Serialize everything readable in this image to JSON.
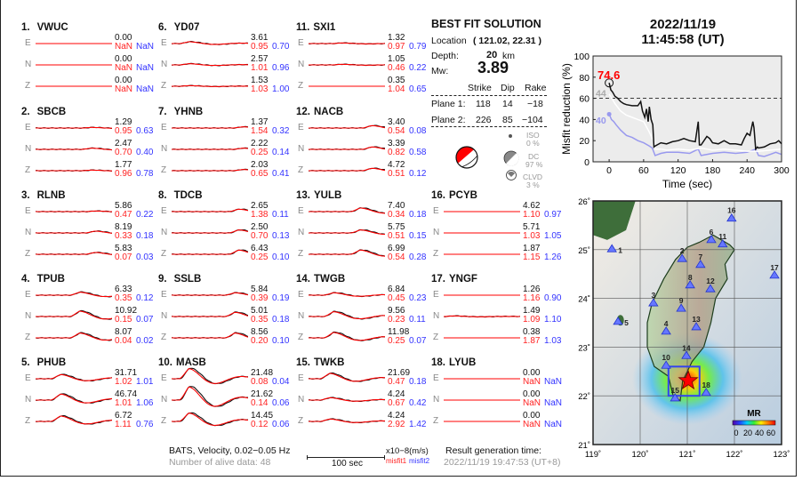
{
  "stations": [
    {
      "num": "1.",
      "code": "VWUC",
      "comps": [
        {
          "c": "E",
          "amp": "0.00",
          "m1": "NaN",
          "m2": "NaN"
        },
        {
          "c": "N",
          "amp": "0.00",
          "m1": "NaN",
          "m2": "NaN"
        },
        {
          "c": "Z",
          "amp": "0.00",
          "m1": "NaN",
          "m2": "NaN"
        }
      ]
    },
    {
      "num": "2.",
      "code": "SBCB",
      "comps": [
        {
          "c": "E",
          "amp": "1.29",
          "m1": "0.95",
          "m2": "0.63"
        },
        {
          "c": "N",
          "amp": "2.47",
          "m1": "0.70",
          "m2": "0.40"
        },
        {
          "c": "Z",
          "amp": "1.77",
          "m1": "0.96",
          "m2": "0.78"
        }
      ]
    },
    {
      "num": "3.",
      "code": "RLNB",
      "comps": [
        {
          "c": "E",
          "amp": "5.86",
          "m1": "0.47",
          "m2": "0.22"
        },
        {
          "c": "N",
          "amp": "8.19",
          "m1": "0.33",
          "m2": "0.18"
        },
        {
          "c": "Z",
          "amp": "5.83",
          "m1": "0.07",
          "m2": "0.03"
        }
      ]
    },
    {
      "num": "4.",
      "code": "TPUB",
      "comps": [
        {
          "c": "E",
          "amp": "6.33",
          "m1": "0.35",
          "m2": "0.12"
        },
        {
          "c": "N",
          "amp": "10.92",
          "m1": "0.15",
          "m2": "0.07"
        },
        {
          "c": "Z",
          "amp": "8.07",
          "m1": "0.04",
          "m2": "0.02"
        }
      ]
    },
    {
      "num": "5.",
      "code": "PHUB",
      "comps": [
        {
          "c": "E",
          "amp": "31.71",
          "m1": "1.02",
          "m2": "1.01"
        },
        {
          "c": "N",
          "amp": "46.74",
          "m1": "1.01",
          "m2": "1.06"
        },
        {
          "c": "Z",
          "amp": "6.72",
          "m1": "1.11",
          "m2": "0.76"
        }
      ]
    },
    {
      "num": "6.",
      "code": "YD07",
      "comps": [
        {
          "c": "E",
          "amp": "3.61",
          "m1": "0.95",
          "m2": "0.70"
        },
        {
          "c": "N",
          "amp": "2.57",
          "m1": "1.01",
          "m2": "0.96"
        },
        {
          "c": "Z",
          "amp": "1.53",
          "m1": "1.03",
          "m2": "1.00"
        }
      ]
    },
    {
      "num": "7.",
      "code": "YHNB",
      "comps": [
        {
          "c": "E",
          "amp": "1.37",
          "m1": "1.54",
          "m2": "0.32"
        },
        {
          "c": "N",
          "amp": "2.22",
          "m1": "0.25",
          "m2": "0.14"
        },
        {
          "c": "Z",
          "amp": "2.03",
          "m1": "0.65",
          "m2": "0.41"
        }
      ]
    },
    {
      "num": "8.",
      "code": "TDCB",
      "comps": [
        {
          "c": "E",
          "amp": "2.65",
          "m1": "1.38",
          "m2": "0.11"
        },
        {
          "c": "N",
          "amp": "2.50",
          "m1": "0.70",
          "m2": "0.13"
        },
        {
          "c": "Z",
          "amp": "6.43",
          "m1": "0.25",
          "m2": "0.10"
        }
      ]
    },
    {
      "num": "9.",
      "code": "SSLB",
      "comps": [
        {
          "c": "E",
          "amp": "5.84",
          "m1": "0.39",
          "m2": "0.19"
        },
        {
          "c": "N",
          "amp": "5.01",
          "m1": "0.35",
          "m2": "0.18"
        },
        {
          "c": "Z",
          "amp": "8.56",
          "m1": "0.20",
          "m2": "0.10"
        }
      ]
    },
    {
      "num": "10.",
      "code": "MASB",
      "comps": [
        {
          "c": "E",
          "amp": "21.48",
          "m1": "0.08",
          "m2": "0.04"
        },
        {
          "c": "N",
          "amp": "21.62",
          "m1": "0.14",
          "m2": "0.06"
        },
        {
          "c": "Z",
          "amp": "14.45",
          "m1": "0.12",
          "m2": "0.06"
        }
      ]
    },
    {
      "num": "11.",
      "code": "SXI1",
      "comps": [
        {
          "c": "E",
          "amp": "1.32",
          "m1": "0.97",
          "m2": "0.79"
        },
        {
          "c": "N",
          "amp": "1.05",
          "m1": "0.46",
          "m2": "0.22"
        },
        {
          "c": "Z",
          "amp": "0.35",
          "m1": "1.04",
          "m2": "0.65"
        }
      ]
    },
    {
      "num": "12.",
      "code": "NACB",
      "comps": [
        {
          "c": "E",
          "amp": "3.40",
          "m1": "0.54",
          "m2": "0.08"
        },
        {
          "c": "N",
          "amp": "3.39",
          "m1": "0.82",
          "m2": "0.58"
        },
        {
          "c": "Z",
          "amp": "4.72",
          "m1": "0.51",
          "m2": "0.12"
        }
      ]
    },
    {
      "num": "13.",
      "code": "YULB",
      "comps": [
        {
          "c": "E",
          "amp": "7.40",
          "m1": "0.34",
          "m2": "0.18"
        },
        {
          "c": "N",
          "amp": "5.75",
          "m1": "0.51",
          "m2": "0.15"
        },
        {
          "c": "Z",
          "amp": "6.99",
          "m1": "0.54",
          "m2": "0.28"
        }
      ]
    },
    {
      "num": "14.",
      "code": "TWGB",
      "comps": [
        {
          "c": "E",
          "amp": "6.84",
          "m1": "0.45",
          "m2": "0.23"
        },
        {
          "c": "N",
          "amp": "9.56",
          "m1": "0.23",
          "m2": "0.11"
        },
        {
          "c": "Z",
          "amp": "11.98",
          "m1": "0.25",
          "m2": "0.07"
        }
      ]
    },
    {
      "num": "15.",
      "code": "TWKB",
      "comps": [
        {
          "c": "E",
          "amp": "21.69",
          "m1": "0.47",
          "m2": "0.18"
        },
        {
          "c": "N",
          "amp": "4.24",
          "m1": "0.67",
          "m2": "0.42"
        },
        {
          "c": "Z",
          "amp": "4.24",
          "m1": "2.92",
          "m2": "1.42"
        }
      ]
    },
    {
      "num": "16.",
      "code": "PCYB",
      "comps": [
        {
          "c": "E",
          "amp": "4.62",
          "m1": "1.10",
          "m2": "0.97"
        },
        {
          "c": "N",
          "amp": "5.71",
          "m1": "1.03",
          "m2": "1.05"
        },
        {
          "c": "Z",
          "amp": "1.87",
          "m1": "1.15",
          "m2": "1.26"
        }
      ]
    },
    {
      "num": "17.",
      "code": "YNGF",
      "comps": [
        {
          "c": "E",
          "amp": "1.26",
          "m1": "1.16",
          "m2": "0.90"
        },
        {
          "c": "N",
          "amp": "1.49",
          "m1": "1.09",
          "m2": "1.10"
        },
        {
          "c": "Z",
          "amp": "0.38",
          "m1": "1.87",
          "m2": "1.03"
        }
      ]
    },
    {
      "num": "18.",
      "code": "LYUB",
      "comps": [
        {
          "c": "E",
          "amp": "0.00",
          "m1": "NaN",
          "m2": "NaN"
        },
        {
          "c": "N",
          "amp": "0.00",
          "m1": "NaN",
          "m2": "NaN"
        },
        {
          "c": "Z",
          "amp": "0.00",
          "m1": "NaN",
          "m2": "NaN"
        }
      ]
    }
  ],
  "solution": {
    "title": "BEST FIT SOLUTION",
    "location_label": "Location",
    "location_value": "( 121.02,  22.31 )",
    "depth_label": "Depth:",
    "depth_value": "20",
    "depth_unit": "km",
    "mw_label": "Mw:",
    "mw_value": "3.89",
    "headers": [
      "Strike",
      "Dip",
      "Rake"
    ],
    "planes": [
      {
        "label": "Plane 1:",
        "strike": "118",
        "dip": "14",
        "rake": "−18"
      },
      {
        "label": "Plane 2:",
        "strike": "226",
        "dip": "85",
        "rake": "−104"
      }
    ],
    "iso_label": "ISO",
    "iso_value": "0  %",
    "dc_label": "DC",
    "dc_value": "97 %",
    "clvd_label": "CLVD",
    "clvd_value": "3  %"
  },
  "event": {
    "date": "2022/11/19",
    "time": "11:45:58  (UT)"
  },
  "footer": {
    "network_line": "BATS, Velocity, 0.02−0.05 Hz",
    "alive_line": "Number of alive data: 48",
    "scale_label": "100 sec",
    "unit_label": "x10−8(m/s)",
    "misfit1_label": "misfit1",
    "misfit2_label": "misfit2",
    "result_time_label": "Result generation time:",
    "result_time_value": "2022/11/19 19:47:53 (UT+8)"
  },
  "colors": {
    "observed": "#111111",
    "synthetic": "#ff0000",
    "misfit1": "#ff2222",
    "misfit2": "#3333ff",
    "station_marker": "#4455ff",
    "epicenter": "#ff0000"
  },
  "chart_data": {
    "type": "line",
    "xlabel": "Time (sec)",
    "ylabel": "Misfit reduction (%)",
    "xlim": [
      -28,
      300
    ],
    "ylim": [
      0,
      100
    ],
    "xticks": [
      0,
      60,
      120,
      180,
      240,
      300
    ],
    "yticks": [
      0,
      20,
      40,
      60,
      80,
      100
    ],
    "threshold": 60,
    "annotations": {
      "max_value": "74.6",
      "white_start": "44",
      "blue_start": "40"
    },
    "series": [
      {
        "color": "#111111",
        "x": [
          0,
          3,
          6,
          10,
          15,
          20,
          25,
          30,
          40,
          50,
          55,
          58,
          62,
          65,
          68,
          70,
          73,
          76,
          78,
          80,
          90,
          100,
          110,
          120,
          130,
          140,
          150,
          155,
          157,
          160,
          170,
          175,
          180,
          190,
          200,
          210,
          220,
          230,
          235,
          240,
          245,
          250,
          252,
          255,
          258,
          260,
          270,
          280,
          290,
          295,
          300
        ],
        "y": [
          74.6,
          68,
          66,
          62,
          60,
          57,
          55,
          54,
          53,
          53,
          57,
          48,
          42,
          50,
          38,
          52,
          40,
          35,
          14,
          15,
          18,
          17,
          19,
          20,
          22,
          20,
          19,
          38,
          16,
          16,
          24,
          22,
          18,
          17,
          20,
          17,
          17,
          16,
          22,
          27,
          25,
          38,
          32,
          12,
          14,
          13,
          14,
          17,
          18,
          20,
          17
        ]
      },
      {
        "color": "#ffffff",
        "x": [
          0,
          5,
          10,
          20,
          30,
          40,
          50,
          60,
          65,
          70,
          75,
          78,
          80,
          90,
          100,
          120,
          140,
          160,
          180,
          200,
          220,
          240,
          260,
          280,
          300
        ],
        "y": [
          64,
          60,
          55,
          48,
          44,
          42,
          40,
          38,
          33,
          28,
          22,
          20,
          12,
          12,
          11,
          12,
          11,
          13,
          11,
          12,
          11,
          10,
          10,
          11,
          12
        ]
      },
      {
        "color": "#9999ee",
        "x": [
          0,
          4,
          8,
          12,
          20,
          30,
          40,
          50,
          60,
          70,
          75,
          80,
          90,
          100,
          120,
          140,
          155,
          160,
          180,
          200,
          220,
          240,
          255,
          260,
          270,
          280,
          290,
          300
        ],
        "y": [
          45,
          40,
          38,
          35,
          30,
          25,
          23,
          20,
          18,
          15,
          13,
          6,
          8,
          9,
          9,
          8,
          12,
          6,
          8,
          9,
          8,
          9,
          12,
          6,
          5,
          7,
          9,
          7
        ]
      }
    ]
  },
  "map": {
    "lon_ticks": [
      "119˚",
      "120˚",
      "121˚",
      "122˚",
      "123˚"
    ],
    "lat_ticks": [
      "21˚",
      "22˚",
      "23˚",
      "24˚",
      "25˚",
      "26˚"
    ],
    "colorbar_title": "MR",
    "colorbar_ticks": [
      "0",
      "20",
      "40",
      "60"
    ],
    "epicenter": {
      "lon": 121.02,
      "lat": 22.31
    },
    "search_box": {
      "lon": [
        120.6,
        121.26
      ],
      "lat": [
        22.0,
        22.6
      ]
    },
    "stations": [
      {
        "label": "1",
        "lon": 119.4,
        "lat": 25.01
      },
      {
        "label": "2",
        "lon": 120.89,
        "lat": 24.81
      },
      {
        "label": "3",
        "lon": 120.28,
        "lat": 23.9
      },
      {
        "label": "4",
        "lon": 120.55,
        "lat": 23.32
      },
      {
        "label": "5",
        "lon": 119.53,
        "lat": 23.52
      },
      {
        "label": "6",
        "lon": 121.51,
        "lat": 25.2
      },
      {
        "label": "7",
        "lon": 121.28,
        "lat": 24.69
      },
      {
        "label": "8",
        "lon": 121.06,
        "lat": 24.27
      },
      {
        "label": "9",
        "lon": 120.87,
        "lat": 23.79
      },
      {
        "label": "10",
        "lon": 120.55,
        "lat": 22.62
      },
      {
        "label": "11",
        "lon": 121.75,
        "lat": 25.11
      },
      {
        "label": "12",
        "lon": 121.49,
        "lat": 24.19
      },
      {
        "label": "13",
        "lon": 121.19,
        "lat": 23.41
      },
      {
        "label": "14",
        "lon": 120.98,
        "lat": 22.82
      },
      {
        "label": "15",
        "lon": 120.74,
        "lat": 21.95
      },
      {
        "label": "16",
        "lon": 121.94,
        "lat": 25.64
      },
      {
        "label": "17",
        "lon": 122.85,
        "lat": 24.47
      },
      {
        "label": "18",
        "lon": 121.4,
        "lat": 22.06
      }
    ]
  }
}
